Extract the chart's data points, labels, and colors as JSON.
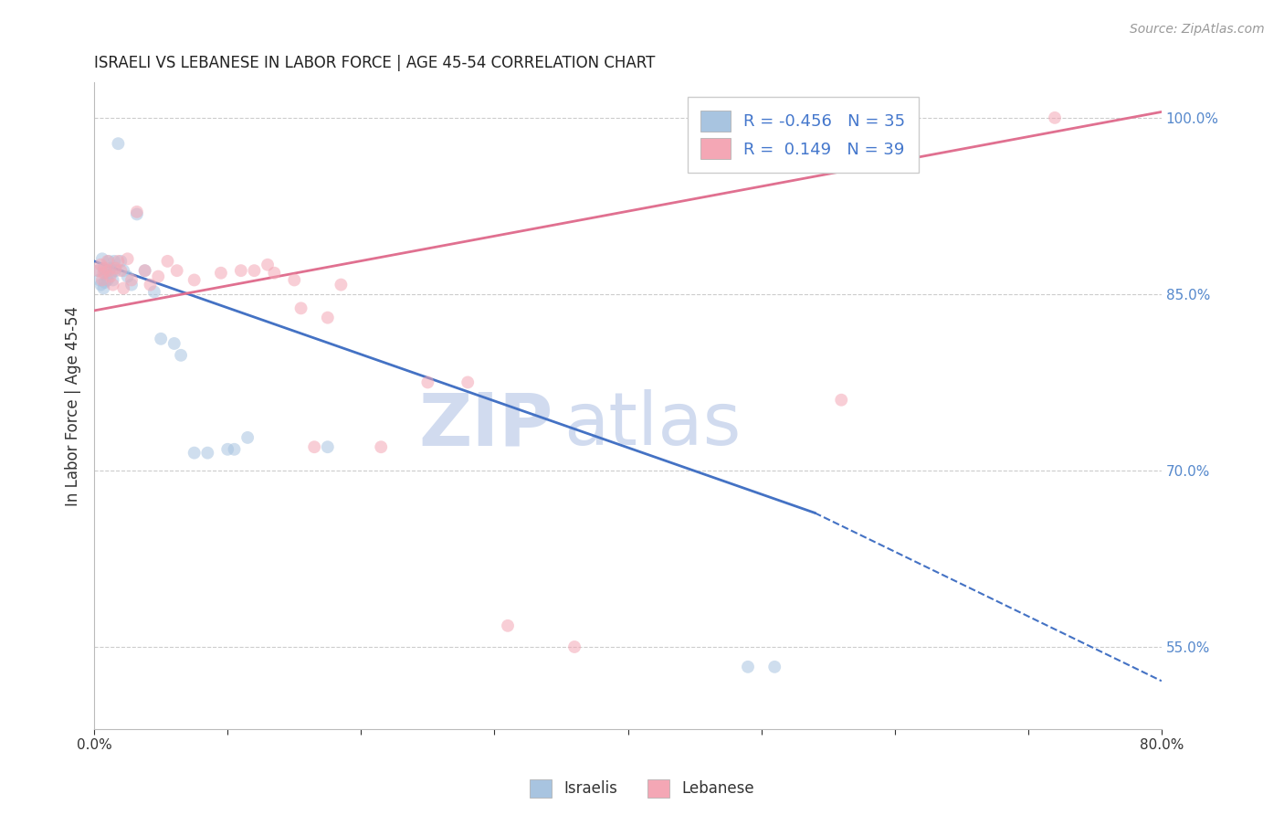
{
  "title": "ISRAELI VS LEBANESE IN LABOR FORCE | AGE 45-54 CORRELATION CHART",
  "source": "Source: ZipAtlas.com",
  "ylabel": "In Labor Force | Age 45-54",
  "xlim": [
    0.0,
    0.8
  ],
  "ylim": [
    0.48,
    1.03
  ],
  "xticks": [
    0.0,
    0.1,
    0.2,
    0.3,
    0.4,
    0.5,
    0.6,
    0.7,
    0.8
  ],
  "xticklabels": [
    "0.0%",
    "",
    "",
    "",
    "",
    "",
    "",
    "",
    "80.0%"
  ],
  "yticks_right": [
    0.55,
    0.7,
    0.85,
    1.0
  ],
  "yticklabels_right": [
    "55.0%",
    "70.0%",
    "85.0%",
    "100.0%"
  ],
  "grid_color": "#cccccc",
  "legend_R_israeli": "-0.456",
  "legend_N_israeli": "35",
  "legend_R_lebanese": "0.149",
  "legend_N_lebanese": "39",
  "israeli_color": "#a8c4e0",
  "lebanese_color": "#f4a7b5",
  "trendline_israeli_color": "#4472c4",
  "trendline_lebanese_color": "#e07090",
  "dot_size": 100,
  "dot_alpha": 0.55,
  "israeli_x": [
    0.003,
    0.004,
    0.005,
    0.006,
    0.007,
    0.007,
    0.008,
    0.008,
    0.009,
    0.01,
    0.011,
    0.012,
    0.013,
    0.014,
    0.015,
    0.016,
    0.018,
    0.02,
    0.022,
    0.025,
    0.028,
    0.032,
    0.038,
    0.045,
    0.05,
    0.06,
    0.065,
    0.075,
    0.085,
    0.1,
    0.105,
    0.115,
    0.49,
    0.51,
    0.175
  ],
  "israeli_y": [
    0.87,
    0.862,
    0.858,
    0.88,
    0.855,
    0.872,
    0.868,
    0.86,
    0.87,
    0.862,
    0.878,
    0.872,
    0.868,
    0.862,
    0.878,
    0.87,
    0.978,
    0.878,
    0.87,
    0.865,
    0.858,
    0.918,
    0.87,
    0.852,
    0.812,
    0.808,
    0.798,
    0.715,
    0.715,
    0.718,
    0.718,
    0.728,
    0.533,
    0.533,
    0.72
  ],
  "lebanese_x": [
    0.003,
    0.005,
    0.006,
    0.007,
    0.008,
    0.01,
    0.011,
    0.012,
    0.014,
    0.016,
    0.018,
    0.02,
    0.022,
    0.025,
    0.028,
    0.032,
    0.038,
    0.042,
    0.048,
    0.055,
    0.062,
    0.075,
    0.095,
    0.11,
    0.135,
    0.15,
    0.165,
    0.215,
    0.25,
    0.28,
    0.31,
    0.36,
    0.56,
    0.155,
    0.175,
    0.185,
    0.12,
    0.13,
    0.72
  ],
  "lebanese_y": [
    0.87,
    0.875,
    0.862,
    0.868,
    0.872,
    0.878,
    0.87,
    0.865,
    0.858,
    0.872,
    0.878,
    0.87,
    0.855,
    0.88,
    0.862,
    0.92,
    0.87,
    0.858,
    0.865,
    0.878,
    0.87,
    0.862,
    0.868,
    0.87,
    0.868,
    0.862,
    0.72,
    0.72,
    0.775,
    0.775,
    0.568,
    0.55,
    0.76,
    0.838,
    0.83,
    0.858,
    0.87,
    0.875,
    1.0
  ],
  "trendline_israeli_x0": 0.0,
  "trendline_israeli_y0": 0.878,
  "trendline_israeli_x_solid_end": 0.54,
  "trendline_israeli_y_solid_end": 0.664,
  "trendline_israeli_x1": 0.8,
  "trendline_israeli_y1": 0.521,
  "trendline_lebanese_x0": 0.0,
  "trendline_lebanese_y0": 0.836,
  "trendline_lebanese_x1": 0.8,
  "trendline_lebanese_y1": 1.005,
  "watermark_line1": "ZIP",
  "watermark_line2": "atlas",
  "watermark_color": "#ccd8ee",
  "background_color": "#ffffff"
}
